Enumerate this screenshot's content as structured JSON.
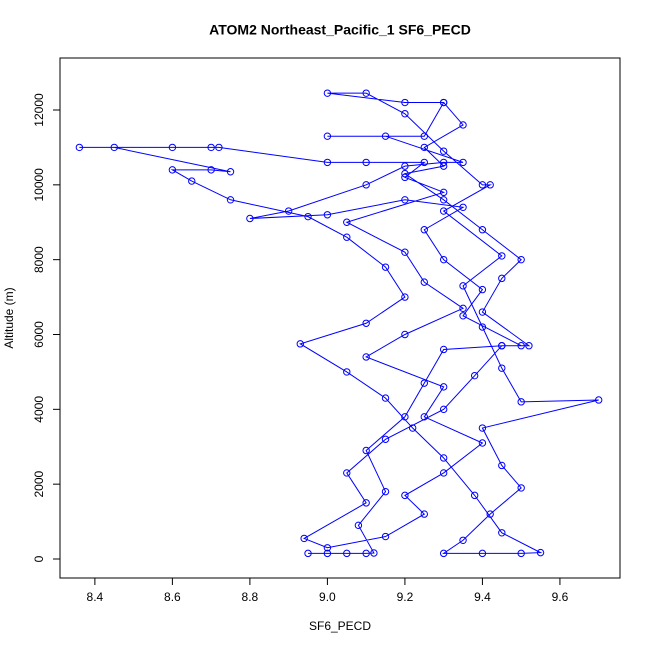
{
  "chart_data": {
    "type": "line",
    "title": "ATOM2 Northeast_Pacific_1 SF6_PECD",
    "x_label": "SF6_PECD",
    "y_label": "Altitude (m)",
    "xlim": [
      8.31,
      9.755
    ],
    "ylim": [
      -508,
      13390
    ],
    "xticks": [
      8.4,
      8.6,
      8.8,
      {
        "value": 9,
        "label": "9.0"
      },
      9.2,
      9.4,
      9.6
    ],
    "yticks": [
      0,
      2000,
      4000,
      6000,
      8000,
      10000,
      12000
    ],
    "series": [
      {
        "color": "#0000ff",
        "x": [
          8.95,
          9.0,
          9.05,
          9.1,
          9.12,
          9.08,
          9.15,
          9.1,
          9.2,
          9.25,
          9.3,
          9.45,
          9.5,
          9.35,
          9.4,
          9.3,
          9.25,
          9.35,
          9.2,
          9.0,
          8.8,
          8.9,
          9.1,
          9.2,
          9.3,
          9.35,
          9.15,
          9.0,
          9.25,
          9.3,
          9.2,
          9.0,
          9.1,
          9.2,
          9.3,
          9.4,
          9.42,
          9.3,
          9.45,
          9.35,
          9.4,
          9.45,
          9.5,
          9.7,
          9.4,
          9.45,
          9.5,
          9.42,
          9.35,
          9.3,
          9.4,
          9.5,
          9.55,
          9.45,
          9.38,
          9.3,
          9.22,
          9.15,
          9.05,
          8.93,
          9.1,
          9.2,
          9.15,
          9.05,
          8.95,
          8.75,
          8.65,
          8.6,
          8.7,
          8.75,
          8.45,
          8.36,
          8.6,
          8.7,
          8.72,
          9.0,
          9.1,
          9.25,
          9.2,
          9.3,
          9.05,
          9.2,
          9.25,
          9.35,
          9.2,
          9.1,
          9.3,
          9.25,
          9.4,
          9.3,
          9.2,
          9.25,
          9.15,
          9.0,
          8.94,
          9.1,
          9.05,
          9.15,
          9.3,
          9.38,
          9.45,
          9.52,
          9.4,
          9.45,
          9.5,
          9.4,
          9.3,
          9.2,
          9.3,
          9.25,
          9.35,
          9.3
        ],
        "y": [
          150,
          150,
          150,
          150,
          160,
          900,
          1800,
          2900,
          3800,
          4700,
          5600,
          5700,
          5700,
          6500,
          7200,
          8000,
          8800,
          9400,
          9600,
          9200,
          9100,
          9300,
          10000,
          10500,
          10600,
          10600,
          11300,
          11300,
          11300,
          12200,
          12200,
          12450,
          12450,
          11900,
          10900,
          10000,
          10000,
          9300,
          8100,
          7300,
          6200,
          5100,
          4200,
          4250,
          3500,
          2500,
          1900,
          1200,
          500,
          150,
          150,
          150,
          170,
          700,
          1700,
          2700,
          3500,
          4300,
          5000,
          5750,
          6300,
          7000,
          7800,
          8600,
          9150,
          9600,
          10100,
          10400,
          10400,
          10350,
          11000,
          11000,
          11000,
          11000,
          11000,
          10600,
          10600,
          10600,
          10200,
          9800,
          9000,
          8200,
          7400,
          6700,
          6000,
          5400,
          4600,
          3800,
          3100,
          2300,
          1700,
          1200,
          600,
          300,
          550,
          1500,
          2300,
          3200,
          4000,
          4900,
          5700,
          5700,
          6600,
          7500,
          8000,
          8800,
          9600,
          10300,
          10500,
          11000,
          11600,
          12200
        ]
      }
    ]
  }
}
